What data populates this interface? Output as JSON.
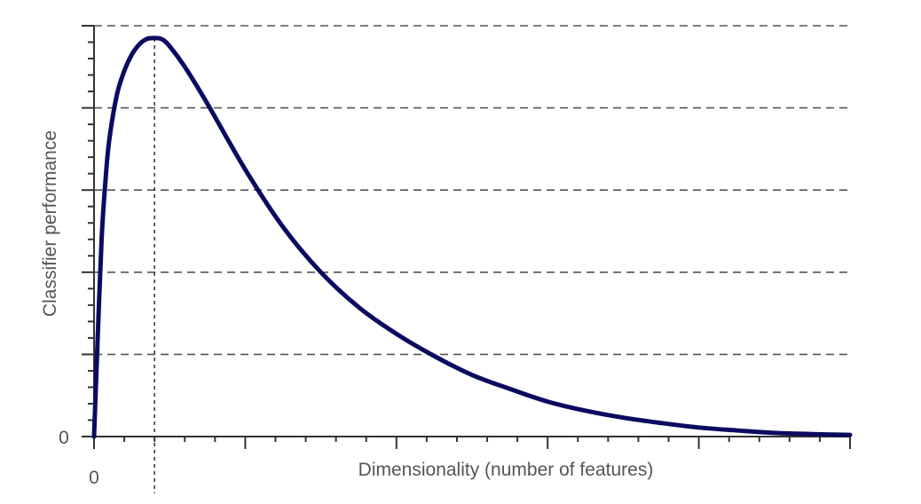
{
  "chart_data": {
    "type": "line",
    "title": "",
    "xlabel": "Dimensionality (number of features)",
    "ylabel": "Classifier performance",
    "x_tick_labels": [
      "0"
    ],
    "y_tick_labels": [
      "0"
    ],
    "xlim": [
      0,
      100
    ],
    "ylim": [
      0,
      100
    ],
    "grid": true,
    "grid_style": "dashed horizontal",
    "x_major_ticks": [
      0,
      20,
      40,
      60,
      80,
      100
    ],
    "x_minor_step": 4,
    "y_major_ticks": [
      0,
      20,
      40,
      60,
      80,
      100
    ],
    "y_minor_step": 4,
    "peak_marker_x": 8,
    "series": [
      {
        "color": "#0b0b60",
        "x": [
          0,
          0.4,
          1,
          1.5,
          2,
          3,
          4,
          5,
          6,
          7,
          8,
          9,
          10,
          12,
          15,
          20,
          25,
          30,
          35,
          40,
          45,
          50,
          55,
          60,
          65,
          70,
          75,
          80,
          85,
          90,
          95,
          100
        ],
        "y": [
          0,
          20,
          48,
          62,
          72,
          83,
          89,
          93,
          95.5,
          96.8,
          97,
          96.7,
          95,
          90,
          81,
          65,
          51,
          40,
          31.5,
          25,
          19.6,
          15,
          11.6,
          8.5,
          6.3,
          4.6,
          3.3,
          2.2,
          1.5,
          0.9,
          0.6,
          0.4
        ]
      }
    ]
  }
}
